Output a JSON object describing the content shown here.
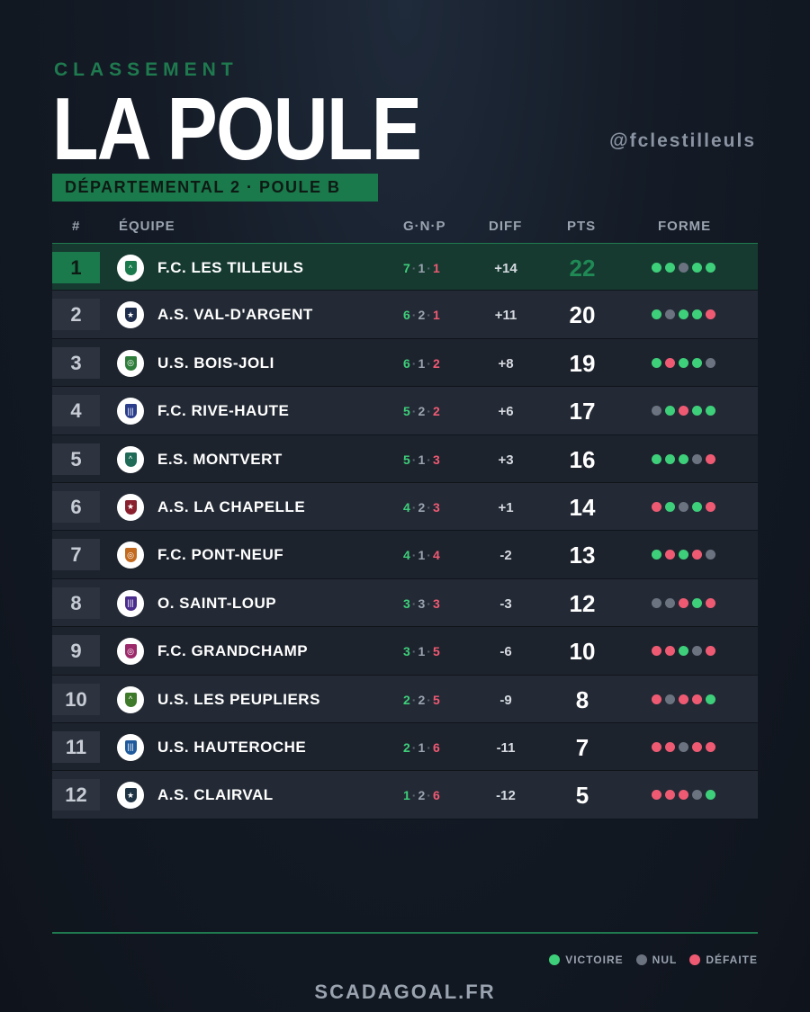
{
  "header": {
    "kicker": "CLASSEMENT",
    "title": "LA POULE",
    "handle": "@fclestilleuls",
    "division": "DÉPARTEMENTAL 2 · POULE B"
  },
  "columns": {
    "rank": "#",
    "team": "ÉQUIPE",
    "gnp": "G·N·P",
    "diff": "DIFF",
    "pts": "PTS",
    "forme": "FORME"
  },
  "standings": [
    {
      "rank": "1",
      "team": "F.C. LES TILLEULS",
      "g": "7",
      "n": "1",
      "p": "1",
      "diff": "+14",
      "pts": "22",
      "forme": [
        "V",
        "V",
        "N",
        "V",
        "V"
      ],
      "crest_color": "#1a7a4c",
      "crest_icon": "chevron-icon"
    },
    {
      "rank": "2",
      "team": "A.S. VAL-D'ARGENT",
      "g": "6",
      "n": "2",
      "p": "1",
      "diff": "+11",
      "pts": "20",
      "forme": [
        "V",
        "N",
        "V",
        "V",
        "D"
      ],
      "crest_color": "#1f2d4d",
      "crest_icon": "star-icon"
    },
    {
      "rank": "3",
      "team": "U.S. BOIS-JOLI",
      "g": "6",
      "n": "1",
      "p": "2",
      "diff": "+8",
      "pts": "19",
      "forme": [
        "V",
        "D",
        "V",
        "V",
        "N"
      ],
      "crest_color": "#2e7d3a",
      "crest_icon": "ring-icon"
    },
    {
      "rank": "4",
      "team": "F.C. RIVE-HAUTE",
      "g": "5",
      "n": "2",
      "p": "2",
      "diff": "+6",
      "pts": "17",
      "forme": [
        "N",
        "V",
        "D",
        "V",
        "V"
      ],
      "crest_color": "#2a3e8c",
      "crest_icon": "stripes-icon"
    },
    {
      "rank": "5",
      "team": "E.S. MONTVERT",
      "g": "5",
      "n": "1",
      "p": "3",
      "diff": "+3",
      "pts": "16",
      "forme": [
        "V",
        "V",
        "V",
        "N",
        "D"
      ],
      "crest_color": "#1f6b58",
      "crest_icon": "chevron-icon"
    },
    {
      "rank": "6",
      "team": "A.S. LA CHAPELLE",
      "g": "4",
      "n": "2",
      "p": "3",
      "diff": "+1",
      "pts": "14",
      "forme": [
        "D",
        "V",
        "N",
        "V",
        "D"
      ],
      "crest_color": "#8a1f2e",
      "crest_icon": "star-icon"
    },
    {
      "rank": "7",
      "team": "F.C. PONT-NEUF",
      "g": "4",
      "n": "1",
      "p": "4",
      "diff": "-2",
      "pts": "13",
      "forme": [
        "V",
        "D",
        "V",
        "D",
        "N"
      ],
      "crest_color": "#c26a1f",
      "crest_icon": "ring-icon"
    },
    {
      "rank": "8",
      "team": "O. SAINT-LOUP",
      "g": "3",
      "n": "3",
      "p": "3",
      "diff": "-3",
      "pts": "12",
      "forme": [
        "N",
        "N",
        "D",
        "V",
        "D"
      ],
      "crest_color": "#4a2d8c",
      "crest_icon": "stripes-icon"
    },
    {
      "rank": "9",
      "team": "F.C. GRANDCHAMP",
      "g": "3",
      "n": "1",
      "p": "5",
      "diff": "-6",
      "pts": "10",
      "forme": [
        "D",
        "D",
        "V",
        "N",
        "D"
      ],
      "crest_color": "#9c2a6b",
      "crest_icon": "ring-icon"
    },
    {
      "rank": "10",
      "team": "U.S. LES PEUPLIERS",
      "g": "2",
      "n": "2",
      "p": "5",
      "diff": "-9",
      "pts": "8",
      "forme": [
        "D",
        "N",
        "D",
        "D",
        "V"
      ],
      "crest_color": "#3f7a2a",
      "crest_icon": "chevron-icon"
    },
    {
      "rank": "11",
      "team": "U.S. HAUTEROCHE",
      "g": "2",
      "n": "1",
      "p": "6",
      "diff": "-11",
      "pts": "7",
      "forme": [
        "D",
        "D",
        "N",
        "D",
        "D"
      ],
      "crest_color": "#1f5a9c",
      "crest_icon": "stripes-icon"
    },
    {
      "rank": "12",
      "team": "A.S. CLAIRVAL",
      "g": "1",
      "n": "2",
      "p": "6",
      "diff": "-12",
      "pts": "5",
      "forme": [
        "D",
        "D",
        "D",
        "N",
        "V"
      ],
      "crest_color": "#1e3344",
      "crest_icon": "star-icon"
    }
  ],
  "legend": {
    "win": "VICTOIRE",
    "draw": "NUL",
    "loss": "DÉFAITE",
    "colors": {
      "win": "#3ecf7a",
      "draw": "#6b7280",
      "loss": "#ef5a73"
    }
  },
  "footer": {
    "site": "SCADAGOAL.FR"
  }
}
